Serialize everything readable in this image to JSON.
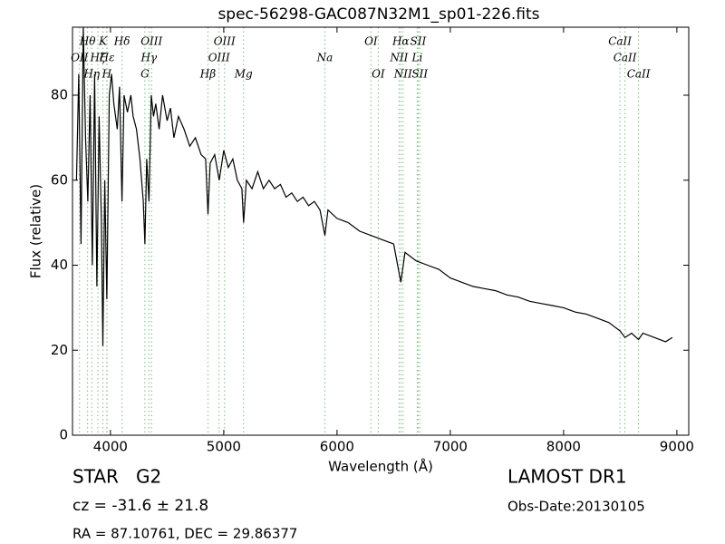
{
  "chart_data": {
    "type": "line",
    "title": "spec-56298-GAC087N32M1_sp01-226.fits",
    "xlabel": "Wavelength (Å)",
    "ylabel": "Flux (relative)",
    "xlim": [
      3665,
      9105
    ],
    "ylim": [
      0,
      96
    ],
    "xticks": [
      4000,
      5000,
      6000,
      7000,
      8000,
      9000
    ],
    "yticks": [
      0,
      20,
      40,
      60,
      80
    ],
    "color": "#000000",
    "line_color": "#7fbf7f",
    "x": [
      3700,
      3720,
      3740,
      3760,
      3780,
      3800,
      3820,
      3840,
      3860,
      3880,
      3900,
      3920,
      3933,
      3950,
      3968,
      3990,
      4010,
      4030,
      4060,
      4080,
      4102,
      4120,
      4150,
      4180,
      4200,
      4230,
      4260,
      4290,
      4304,
      4320,
      4340,
      4360,
      4380,
      4400,
      4430,
      4460,
      4500,
      4530,
      4560,
      4600,
      4650,
      4700,
      4750,
      4800,
      4840,
      4861,
      4880,
      4920,
      4960,
      5000,
      5040,
      5080,
      5120,
      5160,
      5175,
      5200,
      5250,
      5300,
      5350,
      5400,
      5450,
      5500,
      5550,
      5600,
      5650,
      5700,
      5750,
      5800,
      5850,
      5893,
      5920,
      6000,
      6100,
      6200,
      6300,
      6400,
      6500,
      6563,
      6600,
      6700,
      6800,
      6900,
      7000,
      7100,
      7200,
      7300,
      7400,
      7500,
      7600,
      7700,
      7800,
      7900,
      8000,
      8100,
      8200,
      8300,
      8400,
      8500,
      8542,
      8600,
      8662,
      8700,
      8800,
      8900,
      8960
    ],
    "values": [
      60,
      85,
      45,
      96,
      70,
      55,
      80,
      40,
      85,
      35,
      75,
      50,
      21,
      60,
      32,
      80,
      85,
      78,
      72,
      82,
      55,
      80,
      76,
      80,
      75,
      72,
      65,
      55,
      45,
      65,
      55,
      80,
      75,
      78,
      72,
      80,
      74,
      77,
      70,
      75,
      72,
      68,
      70,
      66,
      65,
      52,
      64,
      66,
      60,
      67,
      63,
      65,
      60,
      58,
      50,
      60,
      58,
      62,
      58,
      60,
      58,
      59,
      56,
      57,
      55,
      56,
      54,
      55,
      53,
      47,
      53,
      51,
      50,
      48,
      47,
      46,
      45,
      36,
      43,
      41,
      40,
      39,
      37,
      36,
      35,
      34.5,
      34,
      33,
      32.5,
      31.5,
      31,
      30.5,
      30,
      29,
      28.5,
      27.5,
      26.5,
      24.5,
      23,
      24,
      22.5,
      24,
      23,
      22,
      23
    ],
    "lines": [
      {
        "label": "OII",
        "x": 3727
      },
      {
        "label": "Hθ",
        "x": 3798
      },
      {
        "label": "Hη",
        "x": 3835
      },
      {
        "label": "Hζ",
        "x": 3889
      },
      {
        "label": "K",
        "x": 3934
      },
      {
        "label": "H",
        "x": 3968
      },
      {
        "label": "Hε",
        "x": 3970
      },
      {
        "label": "Hδ",
        "x": 4102
      },
      {
        "label": "G",
        "x": 4304
      },
      {
        "label": "Hγ",
        "x": 4340
      },
      {
        "label": "OIII",
        "x": 4363
      },
      {
        "label": "Hβ",
        "x": 4861
      },
      {
        "label": "OIII",
        "x": 4959
      },
      {
        "label": "OIII",
        "x": 5007
      },
      {
        "label": "Mg",
        "x": 5175
      },
      {
        "label": "Na",
        "x": 5893
      },
      {
        "label": "OI",
        "x": 6300
      },
      {
        "label": "OI",
        "x": 6364
      },
      {
        "label": "NII",
        "x": 6548
      },
      {
        "label": "Hα",
        "x": 6563
      },
      {
        "label": "NII",
        "x": 6583
      },
      {
        "label": "Li",
        "x": 6708
      },
      {
        "label": "SII",
        "x": 6716
      },
      {
        "label": "SII",
        "x": 6731
      },
      {
        "label": "CaII",
        "x": 8498
      },
      {
        "label": "CaII",
        "x": 8542
      },
      {
        "label": "CaII",
        "x": 8662
      }
    ],
    "object_class": "STAR   G2",
    "redshift": "cz = -31.6 ± 21.8",
    "coords": "RA = 87.10761, DEC = 29.86377",
    "survey": "LAMOST DR1",
    "obs_date": "Obs-Date:20130105"
  }
}
